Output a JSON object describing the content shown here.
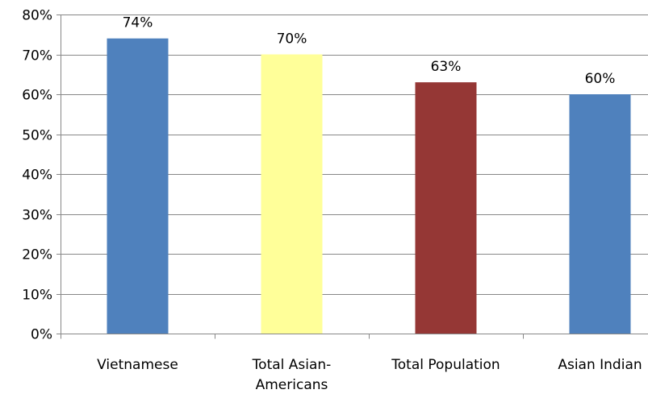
{
  "chart_data": {
    "type": "bar",
    "categories": [
      [
        "Vietnamese"
      ],
      [
        "Total Asian-",
        "Americans"
      ],
      [
        "Total Population"
      ],
      [
        "Asian Indian"
      ]
    ],
    "values": [
      74,
      70,
      63,
      60
    ],
    "data_labels": [
      "74%",
      "70%",
      "63%",
      "60%"
    ],
    "bar_colors": [
      "#4f81bd",
      "#ffff99",
      "#953735",
      "#4f81bd"
    ],
    "ylim": [
      0,
      80
    ],
    "y_ticks": [
      0,
      10,
      20,
      30,
      40,
      50,
      60,
      70,
      80
    ],
    "y_tick_labels": [
      "0%",
      "10%",
      "20%",
      "30%",
      "40%",
      "50%",
      "60%",
      "70%",
      "80%"
    ],
    "grid": true,
    "legend": "none",
    "title": "",
    "xlabel": "",
    "ylabel": ""
  }
}
